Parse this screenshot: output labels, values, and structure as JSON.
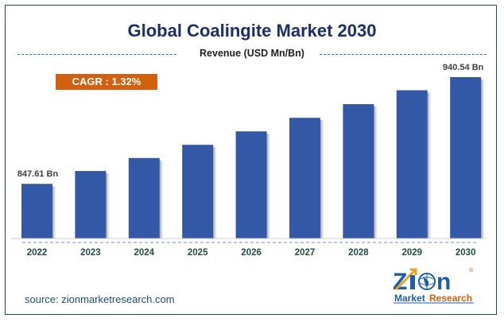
{
  "chart_data": {
    "type": "bar",
    "title": "Global Coalingite Market 2030",
    "subtitle": "Revenue (USD Mn/Bn)",
    "xlabel": "",
    "ylabel": "Revenue (USD Mn/Bn)",
    "categories": [
      "2022",
      "2023",
      "2024",
      "2025",
      "2026",
      "2027",
      "2028",
      "2029",
      "2030"
    ],
    "values": [
      847.61,
      858.8,
      870.1,
      881.6,
      893.3,
      905.1,
      917.0,
      929.1,
      940.54
    ],
    "data_labels": [
      {
        "category": "2022",
        "text": "847.61 Bn"
      },
      {
        "category": "2030",
        "text": "940.54 Bn"
      }
    ],
    "ylim": [
      800,
      950
    ],
    "grid": false,
    "legend": "none",
    "bar_color": "#3358a6",
    "annotation": "CAGR : 1.32%"
  },
  "annotation_color": "#d2600f",
  "title_color": "#1a2f6b",
  "source": "source: zionmarketresearch.com",
  "logo": {
    "text_top": "Zion",
    "text_bottom_left": "Market",
    "text_bottom_right": "Research",
    "registered": "®"
  }
}
